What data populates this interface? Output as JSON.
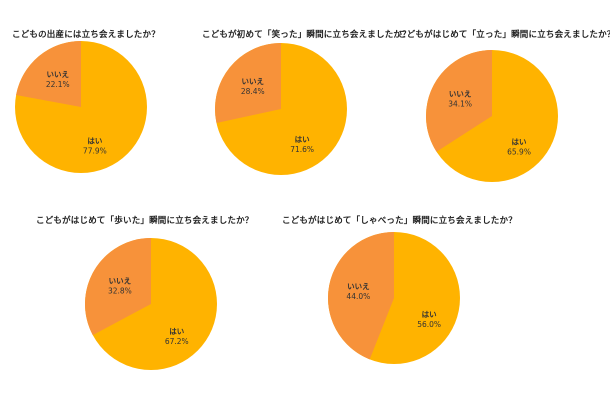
{
  "colors": {
    "yes": "#ffb300",
    "no": "#f7923a"
  },
  "chart_data": [
    {
      "type": "pie",
      "title": "こどもの出産には立ち会えましたか？",
      "slices": [
        {
          "label": "はい",
          "value": 77.9,
          "value_label": "77.9%"
        },
        {
          "label": "いいえ",
          "value": 22.1,
          "value_label": "22.1%"
        }
      ]
    },
    {
      "type": "pie",
      "title": "こどもが初めて「笑った」瞬間に立ち会えましたか？",
      "slices": [
        {
          "label": "はい",
          "value": 71.6,
          "value_label": "71.6%"
        },
        {
          "label": "いいえ",
          "value": 28.4,
          "value_label": "28.4%"
        }
      ]
    },
    {
      "type": "pie",
      "title": "こどもがはじめて「立った」瞬間に立ち会えましたか？",
      "slices": [
        {
          "label": "はい",
          "value": 65.9,
          "value_label": "65.9%"
        },
        {
          "label": "いいえ",
          "value": 34.1,
          "value_label": "34.1%"
        }
      ]
    },
    {
      "type": "pie",
      "title": "こどもがはじめて「歩いた」瞬間に立ち会えましたか？",
      "slices": [
        {
          "label": "はい",
          "value": 67.2,
          "value_label": "67.2%"
        },
        {
          "label": "いいえ",
          "value": 32.8,
          "value_label": "32.8%"
        }
      ]
    },
    {
      "type": "pie",
      "title": "こどもがはじめて「しゃべった」瞬間に立ち会えましたか？",
      "slices": [
        {
          "label": "はい",
          "value": 56.0,
          "value_label": "56.0%"
        },
        {
          "label": "いいえ",
          "value": 44.0,
          "value_label": "44.0%"
        }
      ]
    }
  ]
}
